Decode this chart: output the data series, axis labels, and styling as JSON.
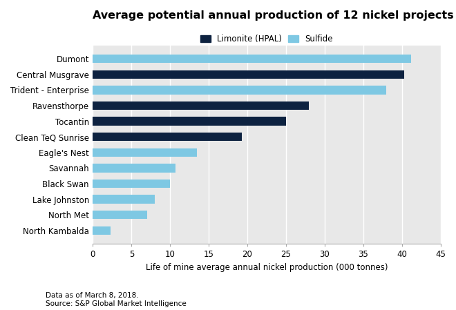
{
  "title": "Average potential annual production of 12 nickel projects",
  "categories": [
    "North Kambalda",
    "North Met",
    "Lake Johnston",
    "Black Swan",
    "Savannah",
    "Eagle's Nest",
    "Clean TeQ Sunrise",
    "Tocantin",
    "Ravensthorpe",
    "Trident - Enterprise",
    "Central Musgrave",
    "Dumont"
  ],
  "values": [
    2.3,
    7.0,
    8.0,
    10.0,
    10.7,
    13.5,
    19.3,
    25.0,
    28.0,
    38.0,
    40.3,
    41.2
  ],
  "types": [
    "Sulfide",
    "Sulfide",
    "Sulfide",
    "Sulfide",
    "Sulfide",
    "Sulfide",
    "Limonite (HPAL)",
    "Limonite (HPAL)",
    "Limonite (HPAL)",
    "Sulfide",
    "Limonite (HPAL)",
    "Sulfide"
  ],
  "color_limonite": "#0d2240",
  "color_sulfide": "#7ec8e3",
  "xlabel": "Life of mine average annual nickel production (000 tonnes)",
  "xlim": [
    0,
    45
  ],
  "xticks": [
    0,
    5,
    10,
    15,
    20,
    25,
    30,
    35,
    40,
    45
  ],
  "legend_limonite": "Limonite (HPAL)",
  "legend_sulfide": "Sulfide",
  "footnote_line1": "Data as of March 8, 2018.",
  "footnote_line2": "Source: S&P Global Market Intelligence",
  "background_color": "#ffffff",
  "plot_bg_color": "#e8e8e8",
  "bar_height": 0.55,
  "title_fontsize": 11.5,
  "label_fontsize": 8.5,
  "tick_fontsize": 8.5,
  "footnote_fontsize": 7.5,
  "legend_fontsize": 8.5
}
